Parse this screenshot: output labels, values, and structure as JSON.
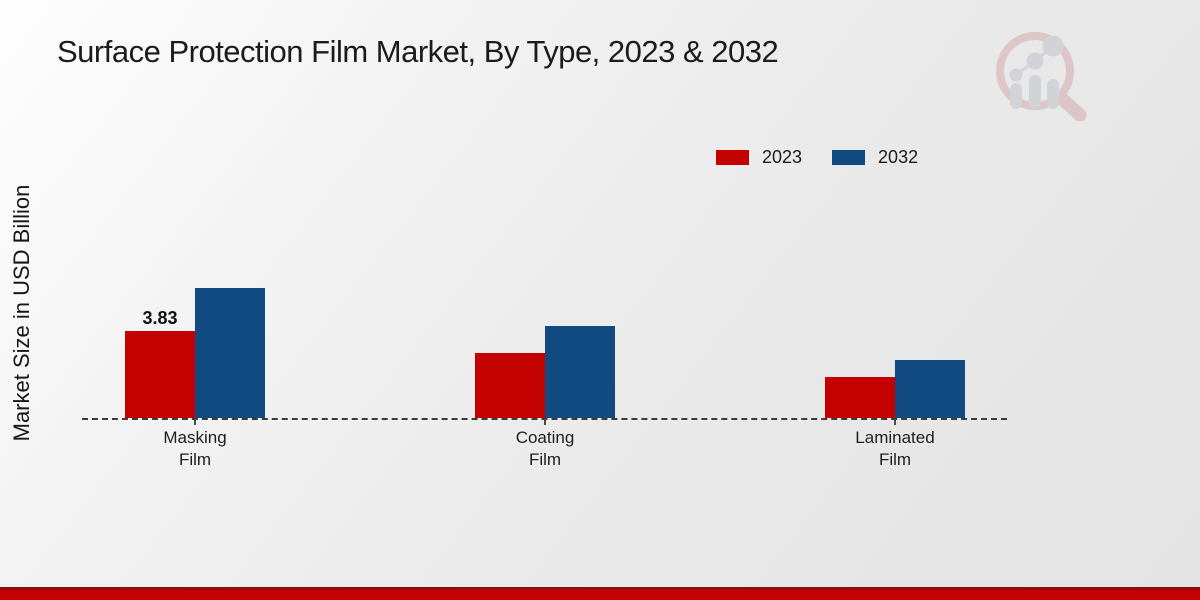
{
  "page": {
    "title": "Surface Protection Film Market, By Type, 2023 & 2032"
  },
  "y_axis": {
    "label": "Market Size in USD Billion"
  },
  "legend": {
    "items": [
      {
        "label": "2023",
        "color": "#c40101"
      },
      {
        "label": "2032",
        "color": "#114a80"
      }
    ]
  },
  "watermark": {
    "description": "magnifier-bar-chart-logo"
  },
  "colors": {
    "accent_red": "#c40101",
    "accent_blue": "#114a80",
    "footer_band": "#c50202",
    "footer_band_edge": "#930b0b",
    "baseline": "#3b3b3b"
  },
  "chart_data": {
    "type": "bar",
    "title": "Surface Protection Film Market, By Type, 2023 & 2032",
    "xlabel": "",
    "ylabel": "Market Size in USD Billion",
    "unit": "USD Billion",
    "categories": [
      "Masking\nFilm",
      "Coating\nFilm",
      "Laminated\nFilm"
    ],
    "series": [
      {
        "name": "2023",
        "color": "#c40101",
        "values": [
          3.83,
          2.87,
          1.81
        ]
      },
      {
        "name": "2032",
        "color": "#114a80",
        "values": [
          5.73,
          4.05,
          2.56
        ]
      }
    ],
    "value_labels": [
      {
        "series_index": 0,
        "category_index": 0,
        "text": "3.83"
      }
    ],
    "ylim": [
      0,
      6.5
    ],
    "grid": false,
    "baseline_style": "dashed",
    "legend_position": "top-right"
  }
}
